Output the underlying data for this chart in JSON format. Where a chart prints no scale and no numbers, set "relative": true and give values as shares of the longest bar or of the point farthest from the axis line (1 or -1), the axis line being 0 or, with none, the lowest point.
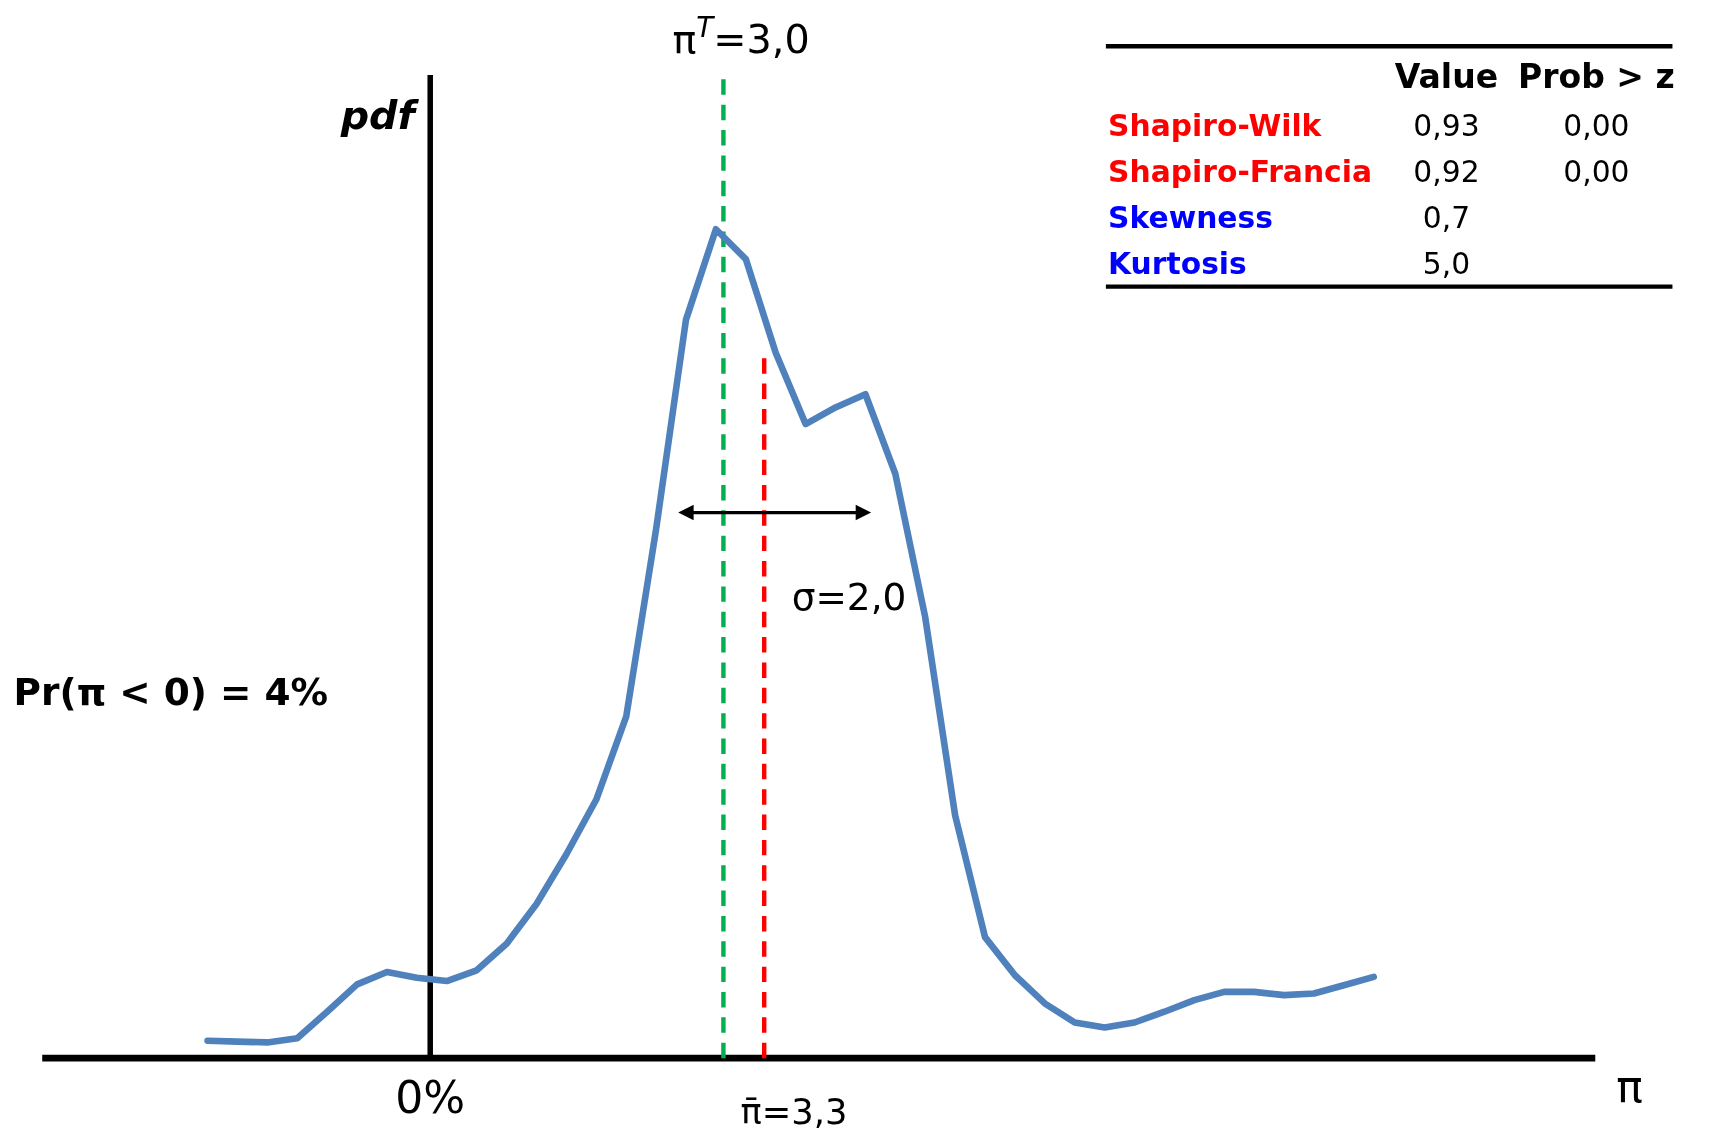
{
  "chart_data": [
    {
      "type": "line",
      "relative": true,
      "xlabel": "π",
      "ylabel": "pdf",
      "line_style": "solid",
      "categories": [
        null,
        null,
        null,
        null,
        null,
        null,
        null,
        null,
        null,
        null,
        null,
        null,
        null,
        null,
        null,
        null,
        null,
        null,
        null,
        null,
        null,
        null,
        null,
        null,
        null,
        null,
        null,
        null,
        null,
        null,
        null,
        null,
        null,
        null,
        null,
        null,
        null,
        null,
        null,
        null
      ],
      "series": [
        {
          "color": "#4f81bd",
          "values": [
            0.021,
            0.02,
            0.019,
            0.024,
            0.056,
            0.089,
            0.104,
            0.097,
            0.093,
            0.106,
            0.138,
            0.186,
            0.246,
            0.312,
            0.412,
            0.638,
            0.891,
            1.0,
            0.964,
            0.851,
            0.765,
            0.785,
            0.801,
            0.705,
            0.532,
            0.293,
            0.146,
            0.1,
            0.066,
            0.043,
            0.037,
            0.043,
            0.056,
            0.07,
            0.08,
            0.08,
            0.076,
            0.078,
            0.088,
            0.098
          ]
        }
      ],
      "annotations": [
        "π$^{T}$=3,0",
        "π̄=3,3",
        "σ=2,0",
        "Pr(π < 0) = 4%",
        "0%"
      ]
    },
    {
      "type": "other",
      "categories": [
        "Shapiro-Wilk",
        "Shapiro-Francia",
        "Skewness",
        "Kurtosis"
      ],
      "colors": [
        "#ff0000",
        "#ff0000",
        "#0000ff",
        "#0000ff"
      ],
      "series": [
        {
          "name": "Value",
          "values": [
            0.93,
            0.92,
            0.7,
            5.0
          ],
          "value_labels": [
            "0,93",
            "0,92",
            "0,7",
            "5,0"
          ]
        },
        {
          "name": "Prob > z",
          "values": [
            0,
            0,
            null,
            null
          ],
          "value_labels": [
            "0,00",
            "0,00",
            null,
            null
          ]
        }
      ]
    }
  ]
}
